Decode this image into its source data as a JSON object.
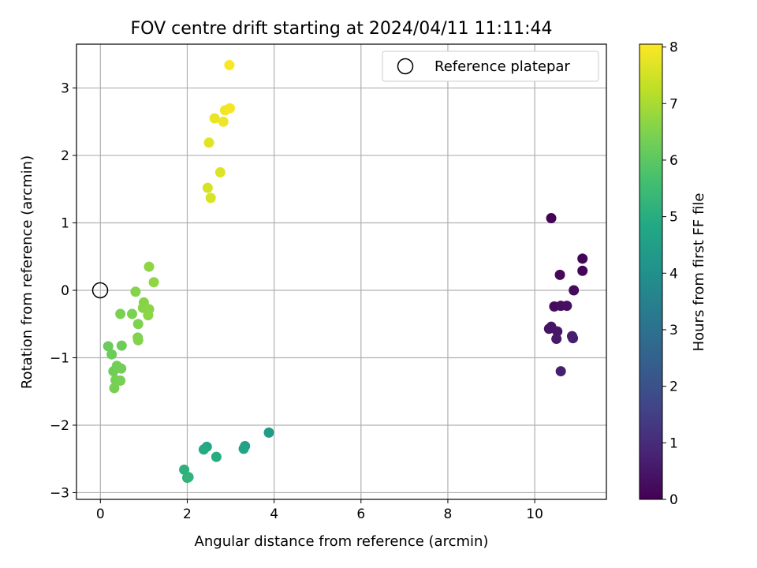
{
  "chart_data": {
    "type": "scatter",
    "title": "FOV centre drift starting at 2024/04/11 11:11:44",
    "xlabel": "Angular distance from reference (arcmin)",
    "ylabel": "Rotation from reference (arcmin)",
    "xlim": [
      -0.55,
      11.65
    ],
    "ylim": [
      -3.1,
      3.65
    ],
    "xticks": [
      0,
      2,
      4,
      6,
      8,
      10
    ],
    "yticks": [
      -3,
      -2,
      -1,
      0,
      1,
      2,
      3
    ],
    "grid": true,
    "legend": {
      "placement": "top-right",
      "entries": [
        "Reference platepar"
      ]
    },
    "reference_point": {
      "x": 0,
      "y": 0
    },
    "colorbar": {
      "label": "Hours from first FF file",
      "colormap": "viridis",
      "range": [
        0,
        8.05
      ],
      "ticks": [
        0,
        1,
        2,
        3,
        4,
        5,
        6,
        7,
        8
      ]
    },
    "points": [
      {
        "x": 10.38,
        "y": 1.07,
        "h": 0.05
      },
      {
        "x": 11.1,
        "y": 0.47,
        "h": 0.08
      },
      {
        "x": 11.1,
        "y": 0.29,
        "h": 0.1
      },
      {
        "x": 10.58,
        "y": 0.23,
        "h": 0.15
      },
      {
        "x": 10.9,
        "y": 0.0,
        "h": 0.2
      },
      {
        "x": 10.45,
        "y": -0.24,
        "h": 0.25
      },
      {
        "x": 10.6,
        "y": -0.23,
        "h": 0.3
      },
      {
        "x": 10.74,
        "y": -0.23,
        "h": 0.35
      },
      {
        "x": 10.33,
        "y": -0.57,
        "h": 0.4
      },
      {
        "x": 10.38,
        "y": -0.54,
        "h": 0.45
      },
      {
        "x": 10.52,
        "y": -0.61,
        "h": 0.5
      },
      {
        "x": 10.5,
        "y": -0.72,
        "h": 0.55
      },
      {
        "x": 10.86,
        "y": -0.68,
        "h": 0.6
      },
      {
        "x": 10.88,
        "y": -0.71,
        "h": 0.65
      },
      {
        "x": 10.6,
        "y": -1.2,
        "h": 0.7
      },
      {
        "x": 3.88,
        "y": -2.11,
        "h": 4.4
      },
      {
        "x": 3.33,
        "y": -2.31,
        "h": 4.6
      },
      {
        "x": 3.3,
        "y": -2.35,
        "h": 4.7
      },
      {
        "x": 2.45,
        "y": -2.32,
        "h": 4.8
      },
      {
        "x": 2.38,
        "y": -2.36,
        "h": 4.9
      },
      {
        "x": 2.67,
        "y": -2.47,
        "h": 5.0
      },
      {
        "x": 1.93,
        "y": -2.66,
        "h": 5.1
      },
      {
        "x": 2.0,
        "y": -2.78,
        "h": 5.15
      },
      {
        "x": 2.03,
        "y": -2.77,
        "h": 5.2
      },
      {
        "x": 0.18,
        "y": -0.83,
        "h": 6.2
      },
      {
        "x": 0.26,
        "y": -0.95,
        "h": 6.22
      },
      {
        "x": 0.49,
        "y": -0.82,
        "h": 6.25
      },
      {
        "x": 0.3,
        "y": -1.2,
        "h": 6.28
      },
      {
        "x": 0.38,
        "y": -1.12,
        "h": 6.3
      },
      {
        "x": 0.48,
        "y": -1.16,
        "h": 6.32
      },
      {
        "x": 0.35,
        "y": -1.33,
        "h": 6.35
      },
      {
        "x": 0.46,
        "y": -1.34,
        "h": 6.38
      },
      {
        "x": 0.32,
        "y": -1.45,
        "h": 6.4
      },
      {
        "x": 0.46,
        "y": -0.35,
        "h": 6.42
      },
      {
        "x": 0.73,
        "y": -0.35,
        "h": 6.45
      },
      {
        "x": 0.87,
        "y": -0.5,
        "h": 6.48
      },
      {
        "x": 0.86,
        "y": -0.7,
        "h": 6.5
      },
      {
        "x": 0.87,
        "y": -0.74,
        "h": 6.52
      },
      {
        "x": 0.81,
        "y": -0.02,
        "h": 6.55
      },
      {
        "x": 1.0,
        "y": -0.18,
        "h": 6.58
      },
      {
        "x": 0.98,
        "y": -0.26,
        "h": 6.6
      },
      {
        "x": 1.12,
        "y": -0.28,
        "h": 6.62
      },
      {
        "x": 1.1,
        "y": -0.37,
        "h": 6.65
      },
      {
        "x": 1.12,
        "y": 0.35,
        "h": 6.68
      },
      {
        "x": 1.23,
        "y": 0.12,
        "h": 6.7
      },
      {
        "x": 2.47,
        "y": 1.52,
        "h": 7.55
      },
      {
        "x": 2.54,
        "y": 1.37,
        "h": 7.6
      },
      {
        "x": 2.76,
        "y": 1.75,
        "h": 7.65
      },
      {
        "x": 2.5,
        "y": 2.19,
        "h": 7.7
      },
      {
        "x": 2.63,
        "y": 2.55,
        "h": 7.8
      },
      {
        "x": 2.83,
        "y": 2.5,
        "h": 7.85
      },
      {
        "x": 2.87,
        "y": 2.67,
        "h": 7.9
      },
      {
        "x": 2.98,
        "y": 2.7,
        "h": 7.95
      },
      {
        "x": 2.97,
        "y": 3.34,
        "h": 8.0
      }
    ]
  }
}
